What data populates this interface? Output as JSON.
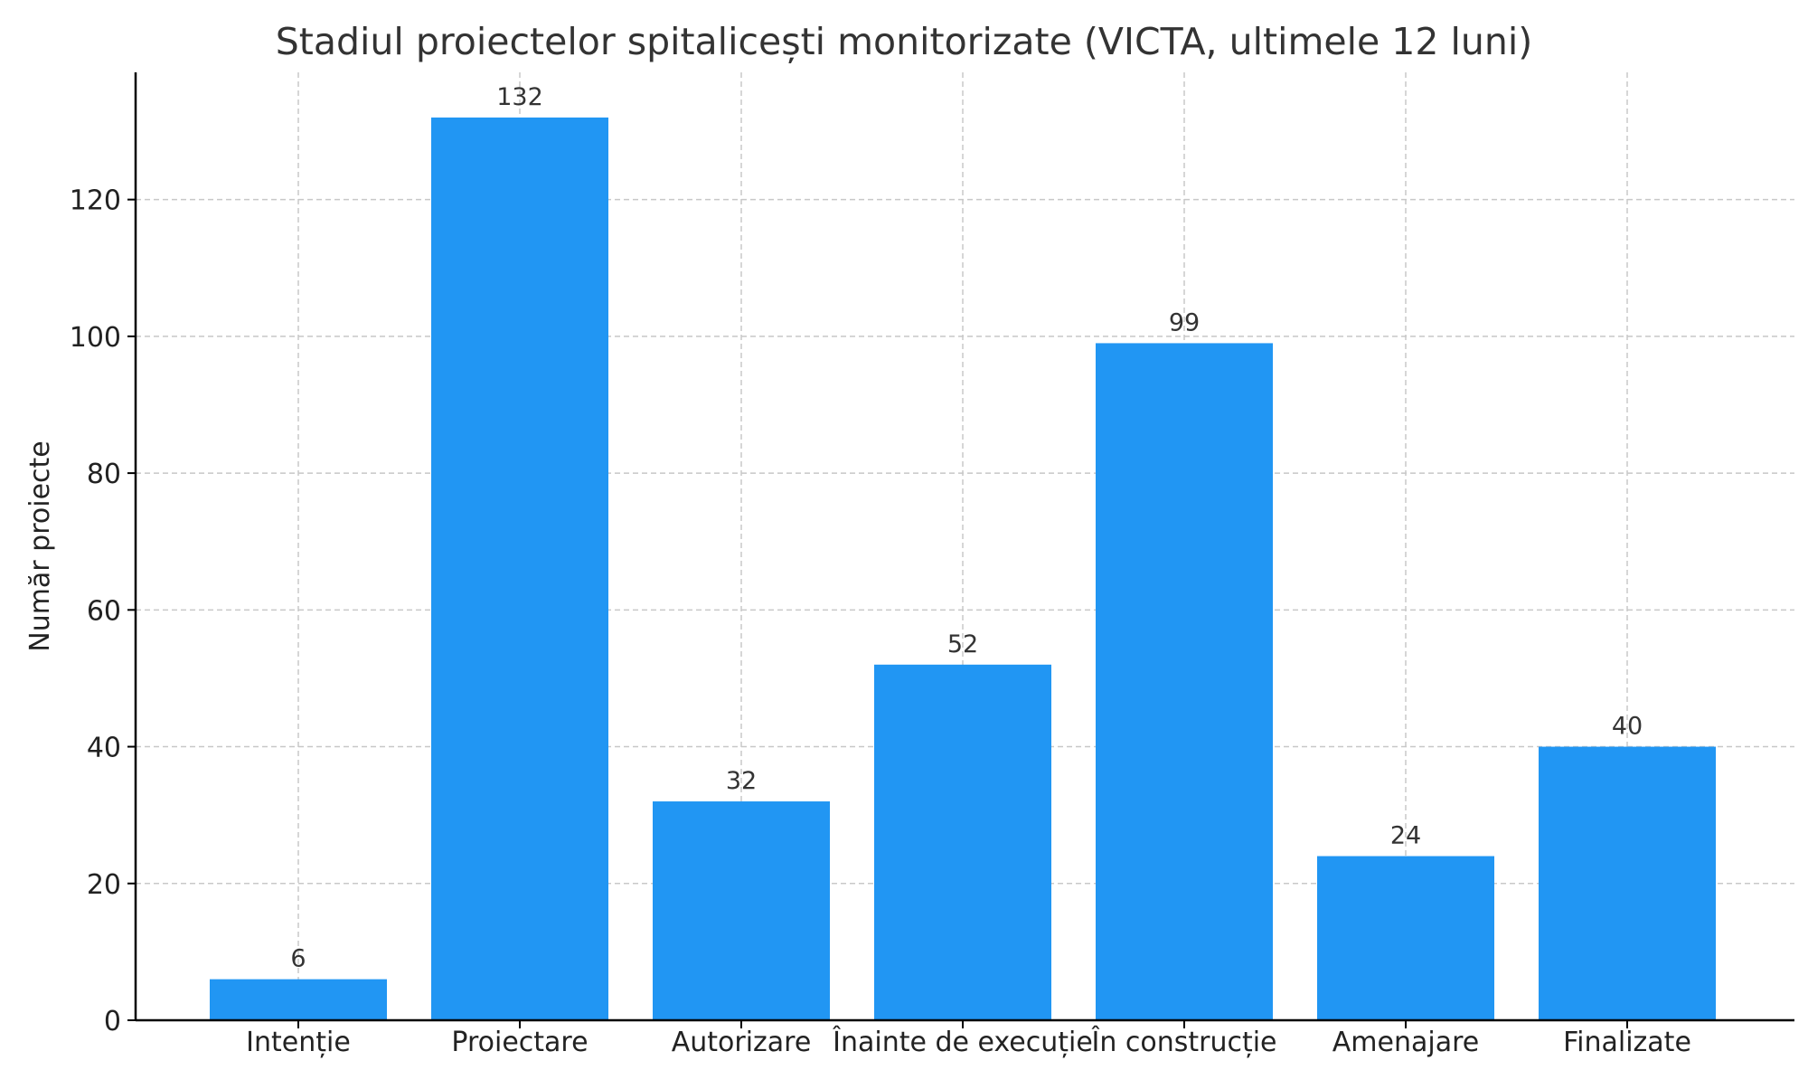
{
  "chart_data": {
    "type": "bar",
    "title": "Stadiul proiectelor spitalicești monitorizate (VICTA, ultimele 12 luni)",
    "xlabel": "",
    "ylabel": "Număr proiecte",
    "categories": [
      "Intenție",
      "Proiectare",
      "Autorizare",
      "Înainte de execuție",
      "În construcție",
      "Amenajare",
      "Finalizate"
    ],
    "values": [
      6,
      132,
      32,
      52,
      99,
      24,
      40
    ],
    "data_labels": [
      "6",
      "132",
      "32",
      "52",
      "99",
      "24",
      "40"
    ],
    "ylim": [
      0,
      138.6
    ],
    "yticks": [
      0,
      20,
      40,
      60,
      80,
      100,
      120
    ],
    "ytick_labels": [
      "0",
      "20",
      "40",
      "60",
      "80",
      "100",
      "120"
    ],
    "grid": true,
    "colors": {
      "bar": "#2196f3",
      "grid": "#c8c8c8",
      "text": "#333333",
      "axis": "#000000"
    }
  }
}
